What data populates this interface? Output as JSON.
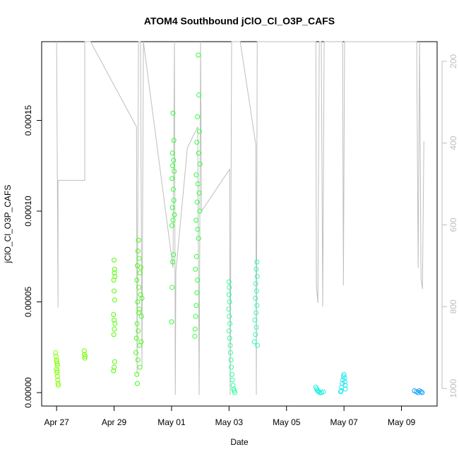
{
  "chart_data": {
    "type": "scatter",
    "title": "ATOM4 Southbound jClO_Cl_O3P_CAFS",
    "x_label": "Date",
    "y_label": "jClO_Cl_O3P_CAFS",
    "xlim": [
      -0.52,
      13.24
    ],
    "xticks": [
      {
        "value": 0,
        "label": "Apr 27"
      },
      {
        "value": 2,
        "label": "Apr 29"
      },
      {
        "value": 4,
        "label": "May 01"
      },
      {
        "value": 6,
        "label": "May 03"
      },
      {
        "value": 8,
        "label": "May 05"
      },
      {
        "value": 10,
        "label": "May 07"
      },
      {
        "value": 12,
        "label": "May 09"
      }
    ],
    "ylim": [
      -7.4e-06,
      0.0001934
    ],
    "yticks": [
      {
        "value": 0,
        "label": "0.00000"
      },
      {
        "value": 5e-05,
        "label": "0.00005"
      },
      {
        "value": 0.0001,
        "label": "0.00010"
      },
      {
        "value": 0.00015,
        "label": "0.00015"
      }
    ],
    "y2lim": [
      1043,
      152
    ],
    "y2ticks": [
      200,
      400,
      600,
      800,
      1000
    ],
    "series": [
      {
        "type": "line",
        "axis": "y2",
        "color": "#bebebe",
        "x": [
          0,
          0.05,
          0.05,
          0.98,
          0.98,
          1.18,
          2.78,
          2.8,
          2.85,
          2.92,
          2.97,
          3.02,
          4.05,
          4.1,
          4.13,
          4.15,
          4.55,
          4.91,
          4.96,
          5.01,
          5.04,
          6.02,
          6.04,
          6.09,
          6.39,
          6.93,
          6.95,
          6.98,
          9.02,
          9.04,
          9.09,
          9.14,
          9.21,
          9.26,
          9.31,
          9.95,
          9.98,
          10.02,
          12.53,
          12.58,
          12.63,
          12.68,
          12.73,
          12.78
        ],
        "values": [
          152,
          802,
          491,
          491,
          152,
          152,
          360,
          964,
          152,
          152,
          947,
          152,
          705,
          152,
          1016,
          714,
          412,
          360,
          1016,
          152,
          567,
          464,
          1016,
          152,
          152,
          403,
          1016,
          152,
          152,
          748,
          791,
          152,
          152,
          800,
          152,
          152,
          748,
          152,
          152,
          705,
          152,
          731,
          757,
          395
        ]
      },
      {
        "color": "#80ff00",
        "x": [
          -0.03,
          -0.02,
          0.0,
          0.02,
          0.03,
          -0.01,
          0.01,
          0.03,
          0.04,
          0.05,
          0.06,
          0.02,
          0.0
        ],
        "values": [
          2.2e-05,
          2e-05,
          1.8e-05,
          1.6e-05,
          1.5e-05,
          1.3e-05,
          1.1e-05,
          9e-06,
          7e-06,
          5e-06,
          4e-06,
          1.2e-05,
          1.7e-05
        ]
      },
      {
        "color": "#70ff00",
        "x": [
          0.96,
          0.97,
          0.98,
          0.99
        ],
        "values": [
          2.3e-05,
          2.1e-05,
          1.9e-05,
          2e-05
        ]
      },
      {
        "color": "#50ff00",
        "x": [
          2.0,
          2.02,
          2.01,
          2.03,
          1.99,
          2.0,
          2.02,
          1.98,
          2.0,
          2.03,
          2.01,
          1.99,
          2.02,
          2.0,
          1.98
        ],
        "values": [
          7.3e-05,
          6.8e-05,
          6.6e-05,
          6.4e-05,
          6.2e-05,
          5.6e-05,
          5.1e-05,
          4.3e-05,
          4e-05,
          3.8e-05,
          3.5e-05,
          3.2e-05,
          1.7e-05,
          1.4e-05,
          1.2e-05
        ]
      },
      {
        "color": "#40ff10",
        "x": [
          2.85,
          2.83,
          2.87,
          2.81,
          2.9,
          2.79,
          2.86,
          2.92,
          2.82,
          2.88,
          2.95,
          2.8,
          2.84,
          2.78,
          2.89,
          2.76,
          2.83,
          2.9,
          2.79,
          2.81,
          2.93,
          2.97,
          2.86,
          2.94
        ],
        "values": [
          8.4e-05,
          7.8e-05,
          7.4e-05,
          7e-05,
          6.6e-05,
          6.2e-05,
          5.8e-05,
          5.4e-05,
          5e-05,
          4.6e-05,
          4.2e-05,
          3.8e-05,
          3.4e-05,
          3e-05,
          2.6e-05,
          2.2e-05,
          1.8e-05,
          1.4e-05,
          1e-05,
          5e-06,
          6.9e-05,
          5.2e-05,
          4.4e-05,
          2.8e-05
        ]
      },
      {
        "color": "#30ff30",
        "x": [
          4.05,
          4.08,
          4.03,
          4.07,
          4.04,
          4.09,
          4.02,
          4.06,
          4.08,
          4.03,
          4.1,
          4.05,
          4.01,
          4.07,
          4.04,
          4.02,
          4.0
        ],
        "values": [
          0.000154,
          0.000139,
          0.000132,
          0.000128,
          0.000125,
          0.000122,
          0.000118,
          0.000112,
          0.000106,
          0.000102,
          9.8e-05,
          9.5e-05,
          9.2e-05,
          7.6e-05,
          7.2e-05,
          5.8e-05,
          3.9e-05
        ]
      },
      {
        "color": "#30ff40",
        "x": [
          4.93,
          4.95,
          4.9,
          4.97,
          4.88,
          4.94,
          4.99,
          4.86,
          4.92,
          4.96,
          4.89,
          4.98,
          4.85,
          4.91,
          4.94,
          4.87,
          4.83,
          4.9,
          4.88,
          4.86,
          4.84,
          4.82,
          4.81
        ],
        "values": [
          0.000186,
          0.000164,
          0.000152,
          0.000144,
          0.000138,
          0.000132,
          0.000126,
          0.00012,
          0.000115,
          0.00011,
          0.000105,
          0.0001,
          9.5e-05,
          9e-05,
          8.5e-05,
          7.5e-05,
          6.8e-05,
          6.2e-05,
          5.5e-05,
          4.8e-05,
          4.2e-05,
          3.5e-05,
          3.1e-05
        ]
      },
      {
        "color": "#30ffa0",
        "x": [
          6.0,
          6.01,
          6.0,
          6.02,
          5.99,
          6.01,
          6.03,
          6.0,
          6.02,
          6.04,
          6.05,
          6.07,
          6.08,
          6.1,
          6.12,
          6.14,
          6.16,
          6.18,
          6.2
        ],
        "values": [
          6.1e-05,
          5.8e-05,
          5.4e-05,
          5e-05,
          4.6e-05,
          4.2e-05,
          3.8e-05,
          3.4e-05,
          3e-05,
          2.6e-05,
          2.2e-05,
          1.8e-05,
          1.4e-05,
          1e-05,
          7e-06,
          4e-06,
          2e-06,
          1e-06,
          0
        ]
      },
      {
        "color": "#30ffb0",
        "x": [
          6.97,
          6.95,
          6.98,
          6.93,
          6.96,
          6.92,
          6.97,
          6.94,
          6.9,
          6.95,
          6.92,
          6.88,
          6.99
        ],
        "values": [
          7.2e-05,
          6.8e-05,
          6.4e-05,
          6e-05,
          5.6e-05,
          5.2e-05,
          4.8e-05,
          4.4e-05,
          4e-05,
          3.6e-05,
          3.2e-05,
          2.8e-05,
          2.6e-05
        ]
      },
      {
        "color": "#20f0e0",
        "x": [
          9.02,
          9.05,
          9.08,
          9.12,
          9.16,
          9.1,
          9.22,
          9.28
        ],
        "values": [
          3e-06,
          2e-06,
          1e-06,
          5e-07,
          0,
          1e-06,
          0,
          5e-07
        ]
      },
      {
        "color": "#20e8f0",
        "x": [
          10.0,
          9.98,
          10.02,
          9.96,
          10.03,
          9.94,
          10.04,
          9.92,
          10.05,
          9.9,
          9.88
        ],
        "values": [
          1e-05,
          9e-06,
          8e-06,
          7e-06,
          6e-06,
          5e-06,
          4e-06,
          3e-06,
          2e-06,
          1e-06,
          5e-07
        ]
      },
      {
        "color": "#10a0f0",
        "x": [
          12.45,
          12.52,
          12.58,
          12.62,
          12.68,
          12.72
        ],
        "values": [
          1e-06,
          5e-07,
          0,
          1e-06,
          5e-07,
          0
        ]
      }
    ]
  }
}
